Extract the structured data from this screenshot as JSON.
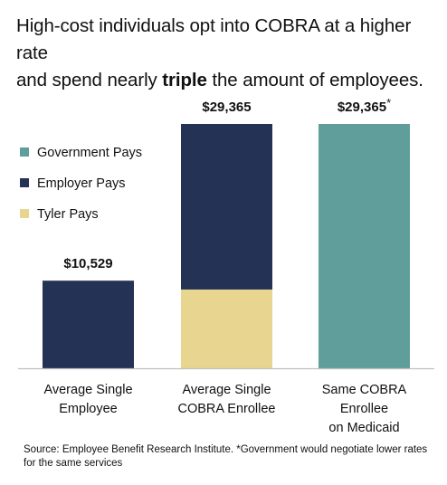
{
  "title": {
    "line1": "High-cost individuals opt into COBRA at a higher rate",
    "line2_pre": "and spend nearly ",
    "line2_bold": "triple",
    "line2_post": " the amount of employees."
  },
  "colors": {
    "government": "#5f9e9a",
    "employer": "#243256",
    "tyler": "#e8d58f",
    "axis": "#bfbfbf",
    "text": "#111111"
  },
  "chart_data": {
    "type": "bar",
    "stacked": true,
    "categories": [
      [
        "Average Single",
        "Employee"
      ],
      [
        "Average Single",
        "COBRA Enrollee"
      ],
      [
        "Same COBRA",
        "Enrollee",
        "on Medicaid"
      ]
    ],
    "series": [
      {
        "name": "Government Pays",
        "color": "#5f9e9a",
        "values": [
          0,
          0,
          29365
        ]
      },
      {
        "name": "Employer Pays",
        "color": "#243256",
        "values": [
          10529,
          19900,
          0
        ]
      },
      {
        "name": "Tyler Pays",
        "color": "#e8d58f",
        "values": [
          0,
          9465,
          0
        ]
      }
    ],
    "legend_order": [
      "Government Pays",
      "Employer Pays",
      "Tyler Pays"
    ],
    "stack_order_bottom_up": [
      "Tyler Pays",
      "Employer Pays",
      "Government Pays"
    ],
    "totals": [
      10529,
      29365,
      29365
    ],
    "total_labels": [
      "$10,529",
      "$29,365",
      "$29,365"
    ],
    "total_label_suffix": [
      "",
      "",
      "*"
    ],
    "legend_position": "left",
    "grid": false,
    "ylim": [
      0,
      29365
    ]
  },
  "source": "Source: Employee Benefit Research Institute. *Government would negotiate lower rates for the same services"
}
